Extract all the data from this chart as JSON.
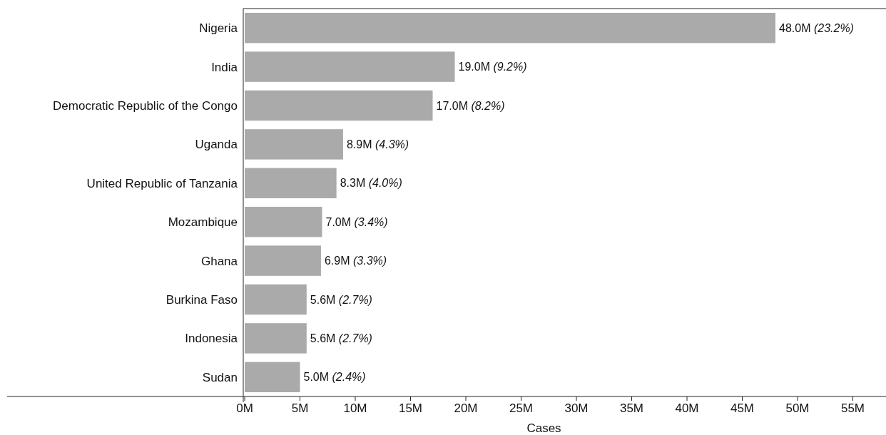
{
  "chart_data": {
    "type": "bar",
    "orientation": "horizontal",
    "xlabel": "Cases",
    "categories": [
      "Nigeria",
      "India",
      "Democratic Republic of the Congo",
      "Uganda",
      "United Republic of Tanzania",
      "Mozambique",
      "Ghana",
      "Burkina Faso",
      "Indonesia",
      "Sudan"
    ],
    "values": [
      48.0,
      19.0,
      17.0,
      8.9,
      8.3,
      7.0,
      6.9,
      5.6,
      5.6,
      5.0
    ],
    "value_labels": [
      "48.0M",
      "19.0M",
      "17.0M",
      "8.9M",
      "8.3M",
      "7.0M",
      "6.9M",
      "5.6M",
      "5.6M",
      "5.0M"
    ],
    "annotations": [
      "(23.2%)",
      "(9.2%)",
      "(8.2%)",
      "(4.3%)",
      "(4.0%)",
      "(3.4%)",
      "(3.3%)",
      "(2.7%)",
      "(2.7%)",
      "(2.4%)"
    ],
    "color": "#aaaaaa",
    "xlim": [
      0,
      58
    ],
    "xticks": [
      {
        "value": 0,
        "label": "0M"
      },
      {
        "value": 5,
        "label": "5M"
      },
      {
        "value": 10,
        "label": "10M"
      },
      {
        "value": 15,
        "label": "15M"
      },
      {
        "value": 20,
        "label": "20M"
      },
      {
        "value": 25,
        "label": "25M"
      },
      {
        "value": 30,
        "label": "30M"
      },
      {
        "value": 35,
        "label": "35M"
      },
      {
        "value": 40,
        "label": "40M"
      },
      {
        "value": 45,
        "label": "45M"
      },
      {
        "value": 50,
        "label": "50M"
      },
      {
        "value": 55,
        "label": "55M"
      }
    ],
    "grid": false
  }
}
